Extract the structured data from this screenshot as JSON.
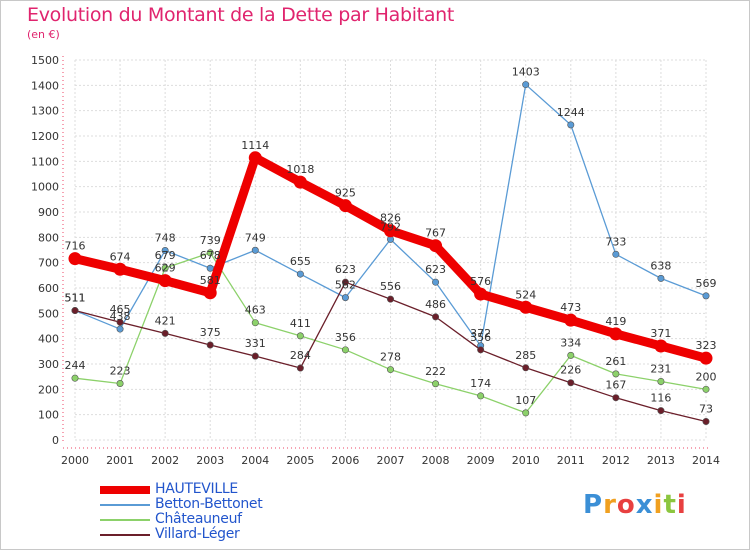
{
  "header": {
    "title": "Evolution du Montant de la Dette par Habitant",
    "unit": "(en €)"
  },
  "logo": {
    "text": "Proxiti",
    "letters": [
      {
        "ch": "P",
        "color": "#3b8fd6"
      },
      {
        "ch": "r",
        "color": "#f0a020"
      },
      {
        "ch": "o",
        "color": "#e84040"
      },
      {
        "ch": "x",
        "color": "#3b8fd6"
      },
      {
        "ch": "i",
        "color": "#f0a020"
      },
      {
        "ch": "t",
        "color": "#8cc63f"
      },
      {
        "ch": "i",
        "color": "#e84040"
      }
    ]
  },
  "chart_data": {
    "type": "line",
    "title": "Evolution du Montant de la Dette par Habitant",
    "ylabel": "(en €)",
    "xlabel": "",
    "x": [
      "2000",
      "2001",
      "2002",
      "2003",
      "2004",
      "2005",
      "2006",
      "2007",
      "2008",
      "2009",
      "2010",
      "2011",
      "2012",
      "2013",
      "2014"
    ],
    "ylim": [
      0,
      1500
    ],
    "yticks": [
      0,
      100,
      200,
      300,
      400,
      500,
      600,
      700,
      800,
      900,
      1000,
      1100,
      1200,
      1300,
      1400,
      1500
    ],
    "grid": true,
    "legend_position": "bottom-left",
    "series": [
      {
        "name": "Betton-Bettonet",
        "color": "#5a9bd5",
        "values": [
          511,
          438,
          748,
          678,
          749,
          655,
          562,
          792,
          623,
          372,
          1403,
          1244,
          733,
          638,
          569
        ],
        "labels": [
          "511",
          "438",
          "748",
          "678",
          "749",
          "655",
          "562",
          "792",
          "623",
          "372",
          "1403",
          "1244",
          "733",
          "638",
          "569"
        ]
      },
      {
        "name": "Châteauneuf",
        "color": "#8cd16a",
        "values": [
          244,
          223,
          679,
          739,
          463,
          411,
          356,
          278,
          222,
          174,
          107,
          334,
          261,
          231,
          200
        ],
        "labels": [
          "244",
          "223",
          "679",
          "739",
          "463",
          "411",
          "356",
          "278",
          "222",
          "174",
          "107",
          "334",
          "261",
          "231",
          "200"
        ]
      },
      {
        "name": "Villard-Léger",
        "color": "#6b1f2a",
        "values": [
          511,
          465,
          421,
          375,
          331,
          284,
          623,
          556,
          486,
          356,
          285,
          226,
          167,
          116,
          73
        ],
        "labels": [
          "511",
          "465",
          "421",
          "375",
          "331",
          "284",
          "623",
          "556",
          "486",
          "356",
          "285",
          "226",
          "167",
          "116",
          "73"
        ]
      },
      {
        "name": "HAUTEVILLE",
        "color": "#ee0000",
        "values": [
          716,
          674,
          629,
          581,
          1114,
          1018,
          925,
          826,
          767,
          576,
          524,
          473,
          419,
          371,
          323
        ],
        "labels": [
          "716",
          "674",
          "629",
          "581",
          "1114",
          "1018",
          "925",
          "826",
          "767",
          "576",
          "524",
          "473",
          "419",
          "371",
          "323"
        ]
      }
    ],
    "legend_order": [
      "HAUTEVILLE",
      "Betton-Bettonet",
      "Châteauneuf",
      "Villard-Léger"
    ]
  }
}
